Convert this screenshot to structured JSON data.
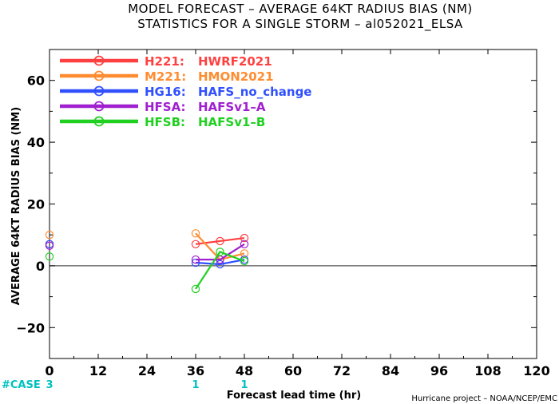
{
  "title_line1": "MODEL FORECAST – AVERAGE 64KT RADIUS BIAS (NM)",
  "title_line2": "STATISTICS FOR A SINGLE STORM – al052021_ELSA",
  "case_label": "#CASE",
  "case_color": "#00c0c0",
  "credit": "Hurricane project – NOAA/NCEP/EMC",
  "chart_data": {
    "type": "line",
    "title": "MODEL FORECAST – AVERAGE 64KT RADIUS BIAS (NM)",
    "subtitle": "STATISTICS FOR A SINGLE STORM – al052021_ELSA",
    "xlabel": "Forecast lead time (hr)",
    "ylabel": "AVERAGE 64KT RADIUS BIAS (NM)",
    "xlim": [
      0,
      120
    ],
    "ylim": [
      -30,
      70
    ],
    "x_ticks": [
      0,
      12,
      24,
      36,
      48,
      60,
      72,
      84,
      96,
      108,
      120
    ],
    "x_tick_labels": [
      "0",
      "12",
      "24",
      "36",
      "48",
      "60",
      "72",
      "84",
      "96",
      "108",
      "120"
    ],
    "y_ticks": [
      -20,
      0,
      20,
      40,
      60
    ],
    "y_tick_labels": [
      "−20",
      "0",
      "20",
      "40",
      "60"
    ],
    "grid": false,
    "zero_line": true,
    "legend_position": "top-left",
    "case_counts": [
      {
        "x": 0,
        "label": "3"
      },
      {
        "x": 36,
        "label": "1"
      },
      {
        "x": 48,
        "label": "1"
      }
    ],
    "series": [
      {
        "id": "H221",
        "model": "HWRF2021",
        "color": "#ff4040",
        "points": [
          [
            0,
            7
          ],
          [
            36,
            7
          ],
          [
            42,
            8
          ],
          [
            48,
            9
          ]
        ]
      },
      {
        "id": "M221",
        "model": "HMON2021",
        "color": "#ff8c30",
        "points": [
          [
            0,
            10
          ],
          [
            36,
            10.5
          ],
          [
            42,
            2
          ],
          [
            48,
            4
          ]
        ]
      },
      {
        "id": "HG16",
        "model": "HAFS_no_change",
        "color": "#3050ff",
        "points": [
          [
            0,
            7
          ],
          [
            36,
            1
          ],
          [
            42,
            0.5
          ],
          [
            48,
            2
          ]
        ]
      },
      {
        "id": "HFSA",
        "model": "HAFSv1–A",
        "color": "#a020d0",
        "points": [
          [
            0,
            6.5
          ],
          [
            36,
            2
          ],
          [
            42,
            2
          ],
          [
            48,
            7
          ]
        ]
      },
      {
        "id": "HFSB",
        "model": "HAFSv1–B",
        "color": "#20d020",
        "points": [
          [
            0,
            3
          ],
          [
            36,
            -7.5
          ],
          [
            42,
            4.5
          ],
          [
            48,
            1.5
          ]
        ]
      }
    ]
  }
}
